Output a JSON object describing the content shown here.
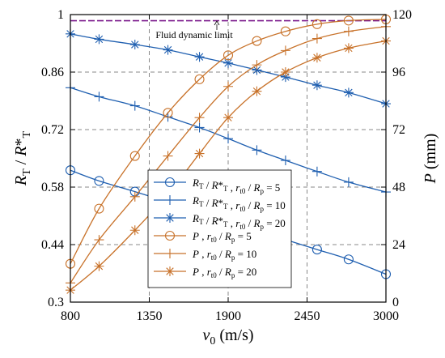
{
  "chart_data": {
    "type": "line",
    "x": [
      800,
      1000,
      1250,
      1480,
      1700,
      1900,
      2100,
      2300,
      2520,
      2740,
      3000
    ],
    "xlabel": "v0 (m/s)",
    "xlabel_parts": {
      "main": "v",
      "sub": "0",
      "unit": " (m/s)"
    },
    "xticks": [
      800,
      1350,
      1900,
      2450,
      3000
    ],
    "xlim": [
      800,
      3000
    ],
    "ylabel_left_parts": {
      "r1": "R",
      "s1": "T",
      "mid": " / R*",
      "s2": "T"
    },
    "ylabel_left": "RT / R*T",
    "ylim_left": [
      0.3,
      1.0
    ],
    "yticks_left": [
      "0.3",
      "0.44",
      "0.58",
      "0.72",
      "0.86",
      "1"
    ],
    "ylabel_right": "P (mm)",
    "ylim_right": [
      0,
      120
    ],
    "yticks_right": [
      "0",
      "24",
      "48",
      "72",
      "96",
      "120"
    ],
    "grid": "dashed",
    "limit_line": {
      "label": "Fluid dynamic limit",
      "value": 0.985,
      "color": "#7b1a8c"
    },
    "series": [
      {
        "name": "RT / R*T , rt0 / Rp = 5",
        "axis": "left",
        "marker": "circle",
        "color": "#1f5fb0",
        "values": [
          0.621,
          0.595,
          0.569,
          0.544,
          0.52,
          0.497,
          0.474,
          0.452,
          0.428,
          0.404,
          0.368
        ]
      },
      {
        "name": "RT / R*T , rt0 / Rp = 10",
        "axis": "left",
        "marker": "plus",
        "color": "#1f5fb0",
        "values": [
          0.822,
          0.8,
          0.778,
          0.751,
          0.725,
          0.698,
          0.67,
          0.645,
          0.618,
          0.592,
          0.568
        ]
      },
      {
        "name": "RT / R*T , rt0 / Rp = 20",
        "axis": "left",
        "marker": "asterisk",
        "color": "#1f5fb0",
        "values": [
          0.953,
          0.94,
          0.927,
          0.914,
          0.897,
          0.882,
          0.865,
          0.848,
          0.828,
          0.81,
          0.783
        ]
      },
      {
        "name": "P , rt0 / Rp = 5",
        "axis": "right",
        "marker": "circle",
        "color": "#c8722a",
        "values": [
          16,
          39,
          61,
          79,
          93,
          103,
          109,
          113,
          116,
          117.5,
          118
        ]
      },
      {
        "name": "P , rt0 / Rp = 10",
        "axis": "right",
        "marker": "plus",
        "color": "#c8722a",
        "values": [
          8,
          26,
          44,
          61,
          77,
          90,
          99,
          105,
          110,
          113,
          115
        ]
      },
      {
        "name": "P , rt0 / Rp = 20",
        "axis": "right",
        "marker": "asterisk",
        "color": "#c8722a",
        "values": [
          5,
          15,
          30,
          45,
          62,
          77,
          88,
          96,
          102,
          106,
          109
        ]
      }
    ],
    "legend": {
      "placement": "lower-center",
      "entries": [
        {
          "a": "R",
          "as": "T",
          "b": " / R*",
          "bs": "T",
          "c": " , r",
          "cs": "t0",
          "d": " / R",
          "ds": "p",
          "e": " = 5"
        },
        {
          "a": "R",
          "as": "T",
          "b": " / R*",
          "bs": "T",
          "c": " , r",
          "cs": "t0",
          "d": " / R",
          "ds": "p",
          "e": " = 10"
        },
        {
          "a": "R",
          "as": "T",
          "b": " / R*",
          "bs": "T",
          "c": " , r",
          "cs": "t0",
          "d": " / R",
          "ds": "p",
          "e": " = 20"
        },
        {
          "a": "P",
          "as": "",
          "b": "",
          "bs": "",
          "c": " , r",
          "cs": "t0",
          "d": " / R",
          "ds": "p",
          "e": " = 5"
        },
        {
          "a": "P",
          "as": "",
          "b": "",
          "bs": "",
          "c": " , r",
          "cs": "t0",
          "d": " / R",
          "ds": "p",
          "e": " = 10"
        },
        {
          "a": "P",
          "as": "",
          "b": "",
          "bs": "",
          "c": " , r",
          "cs": "t0",
          "d": " / R",
          "ds": "p",
          "e": " = 20"
        }
      ]
    }
  }
}
